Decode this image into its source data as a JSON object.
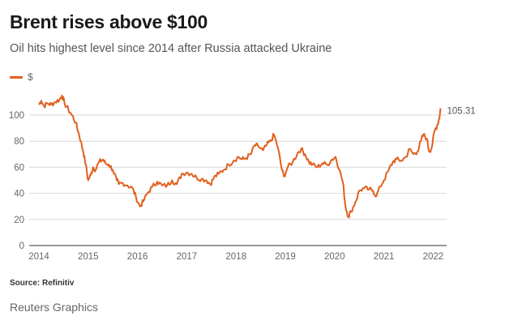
{
  "header": {
    "title": "Brent rises above $100",
    "subtitle": "Oil hits highest level since 2014 after Russia attacked Ukraine"
  },
  "legend": {
    "label": "$"
  },
  "colors": {
    "series": "#e0601e",
    "grid": "#d9d9d9",
    "axis": "#777777"
  },
  "footer": {
    "source": "Source: Refinitiv",
    "credit": "Reuters Graphics"
  },
  "chart_data": {
    "type": "line",
    "title": "Brent rises above $100",
    "subtitle": "Oil hits highest level since 2014 after Russia attacked Ukraine",
    "xlabel": "",
    "ylabel": "$",
    "xlim": [
      2014.0,
      2022.4
    ],
    "ylim": [
      0,
      120
    ],
    "yticks": [
      0,
      20,
      40,
      60,
      80,
      100
    ],
    "xticks": [
      2014,
      2015,
      2016,
      2017,
      2018,
      2019,
      2020,
      2021,
      2022
    ],
    "grid": true,
    "legend": "top-left",
    "end_label": "105.31",
    "series": [
      {
        "name": "$",
        "x": [
          2014.0,
          2014.05,
          2014.1,
          2014.18,
          2014.25,
          2014.33,
          2014.42,
          2014.47,
          2014.52,
          2014.6,
          2014.67,
          2014.75,
          2014.8,
          2014.85,
          2014.9,
          2014.95,
          2015.0,
          2015.05,
          2015.1,
          2015.15,
          2015.22,
          2015.3,
          2015.35,
          2015.42,
          2015.5,
          2015.58,
          2015.62,
          2015.7,
          2015.8,
          2015.9,
          2015.97,
          2016.05,
          2016.12,
          2016.2,
          2016.3,
          2016.4,
          2016.5,
          2016.6,
          2016.7,
          2016.8,
          2016.9,
          2017.0,
          2017.1,
          2017.2,
          2017.3,
          2017.4,
          2017.48,
          2017.55,
          2017.65,
          2017.75,
          2017.85,
          2017.95,
          2018.05,
          2018.12,
          2018.2,
          2018.3,
          2018.38,
          2018.45,
          2018.55,
          2018.62,
          2018.7,
          2018.77,
          2018.85,
          2018.92,
          2018.97,
          2019.05,
          2019.15,
          2019.25,
          2019.32,
          2019.4,
          2019.48,
          2019.55,
          2019.65,
          2019.75,
          2019.85,
          2019.95,
          2020.02,
          2020.1,
          2020.17,
          2020.22,
          2020.28,
          2020.33,
          2020.42,
          2020.5,
          2020.6,
          2020.7,
          2020.78,
          2020.85,
          2020.92,
          2021.0,
          2021.1,
          2021.18,
          2021.25,
          2021.35,
          2021.45,
          2021.52,
          2021.6,
          2021.68,
          2021.75,
          2021.8,
          2021.87,
          2021.92,
          2021.97,
          2022.03,
          2022.08,
          2022.12,
          2022.15
        ],
        "values": [
          108,
          111,
          107,
          109,
          108,
          110,
          112,
          115,
          109,
          104,
          100,
          94,
          87,
          80,
          72,
          62,
          50,
          54,
          60,
          58,
          64,
          66,
          63,
          62,
          58,
          50,
          47,
          48,
          46,
          44,
          37,
          30,
          34,
          40,
          45,
          49,
          46,
          46,
          50,
          47,
          55,
          56,
          55,
          52,
          51,
          50,
          47,
          52,
          55,
          58,
          62,
          65,
          68,
          66,
          67,
          70,
          77,
          76,
          73,
          77,
          80,
          85,
          75,
          60,
          53,
          60,
          64,
          71,
          74,
          70,
          64,
          62,
          60,
          63,
          62,
          66,
          68,
          58,
          48,
          30,
          22,
          26,
          33,
          42,
          44,
          43,
          42,
          38,
          45,
          50,
          58,
          64,
          66,
          65,
          68,
          74,
          70,
          72,
          80,
          85,
          82,
          72,
          75,
          88,
          92,
          97,
          105.31
        ]
      }
    ]
  }
}
